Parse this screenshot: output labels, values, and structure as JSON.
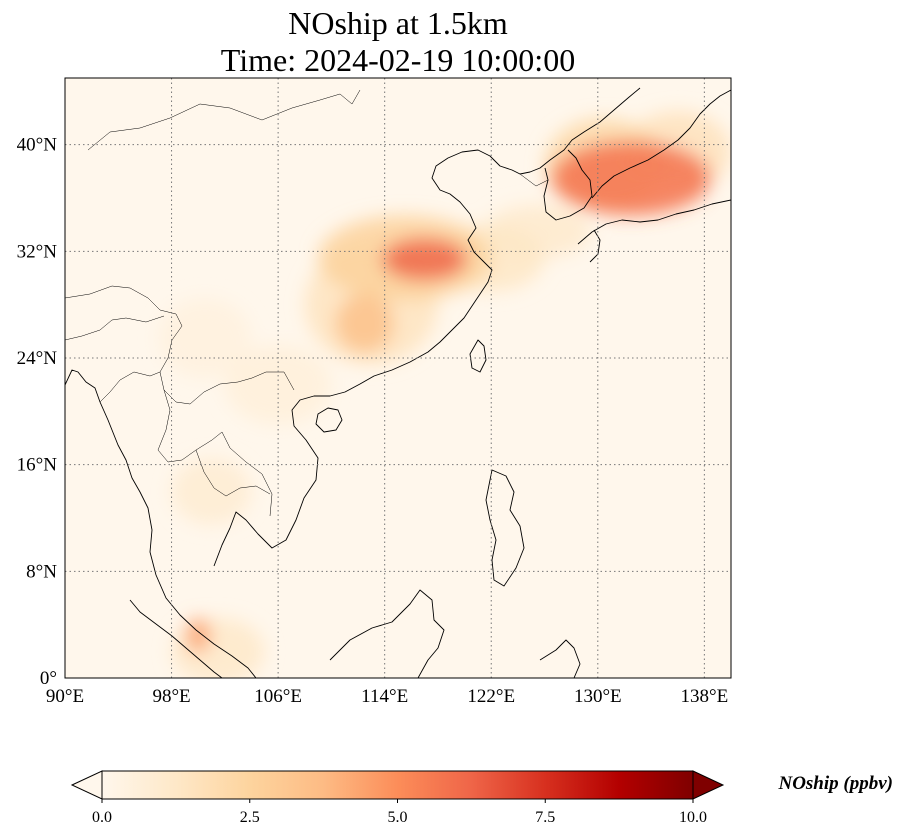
{
  "title": {
    "line1": "NOship at 1.5km",
    "line2": "Time: 2024-02-19 10:00:00"
  },
  "map": {
    "projection": "PlateCarree",
    "extent": {
      "lon": [
        90,
        140
      ],
      "lat": [
        0,
        45
      ]
    },
    "gridlines": {
      "style": "dotted",
      "color": "#777777"
    },
    "lon_ticks": [
      {
        "value": 90,
        "label": "90°E"
      },
      {
        "value": 98,
        "label": "98°E"
      },
      {
        "value": 106,
        "label": "106°E"
      },
      {
        "value": 114,
        "label": "114°E"
      },
      {
        "value": 122,
        "label": "122°E"
      },
      {
        "value": 130,
        "label": "130°E"
      },
      {
        "value": 138,
        "label": "138°E"
      }
    ],
    "lat_ticks": [
      {
        "value": 40,
        "label": "40°N"
      },
      {
        "value": 32,
        "label": "32°N"
      },
      {
        "value": 24,
        "label": "24°N"
      },
      {
        "value": 16,
        "label": "16°N"
      },
      {
        "value": 8,
        "label": "8°N"
      },
      {
        "value": 0,
        "label": "0°"
      }
    ],
    "plumes": [
      {
        "lon": 132.5,
        "lat": 37.5,
        "rx": 6.0,
        "ry": 2.8,
        "value": 5.8
      },
      {
        "lon": 130.5,
        "lat": 38.5,
        "rx": 4.5,
        "ry": 3.5,
        "value": 2.2
      },
      {
        "lon": 136.0,
        "lat": 39.5,
        "rx": 4.0,
        "ry": 3.0,
        "value": 1.6
      },
      {
        "lon": 117.0,
        "lat": 31.4,
        "rx": 3.2,
        "ry": 1.6,
        "value": 6.2
      },
      {
        "lon": 115.5,
        "lat": 31.5,
        "rx": 6.5,
        "ry": 3.2,
        "value": 2.6
      },
      {
        "lon": 112.5,
        "lat": 26.6,
        "rx": 2.2,
        "ry": 2.2,
        "value": 3.4
      },
      {
        "lon": 113.0,
        "lat": 28.0,
        "rx": 5.0,
        "ry": 4.5,
        "value": 1.5
      },
      {
        "lon": 122.0,
        "lat": 31.5,
        "rx": 4.0,
        "ry": 2.5,
        "value": 1.3
      },
      {
        "lon": 125.5,
        "lat": 33.5,
        "rx": 4.0,
        "ry": 2.0,
        "value": 1.1
      },
      {
        "lon": 100.0,
        "lat": 3.2,
        "rx": 0.9,
        "ry": 1.3,
        "value": 4.5
      },
      {
        "lon": 101.5,
        "lat": 2.0,
        "rx": 3.5,
        "ry": 2.5,
        "value": 1.2
      },
      {
        "lon": 101.0,
        "lat": 14.0,
        "rx": 3.0,
        "ry": 2.5,
        "value": 0.9
      },
      {
        "lon": 106.0,
        "lat": 22.0,
        "rx": 4.0,
        "ry": 3.0,
        "value": 0.6
      },
      {
        "lon": 100.5,
        "lat": 25.5,
        "rx": 3.5,
        "ry": 3.0,
        "value": 0.5
      }
    ]
  },
  "colorbar": {
    "cmap": "OrRd",
    "colors": [
      "#fff7ec",
      "#fee8c8",
      "#fdd49e",
      "#fdbb84",
      "#fc8d59",
      "#ef6548",
      "#d7301f",
      "#b30000",
      "#7f0000"
    ],
    "min": 0,
    "max": 10,
    "extend": "both",
    "ticks": [
      {
        "value": 0,
        "label": "0.0"
      },
      {
        "value": 2.5,
        "label": "2.5"
      },
      {
        "value": 5,
        "label": "5.0"
      },
      {
        "value": 7.5,
        "label": "7.5"
      },
      {
        "value": 10,
        "label": "10.0"
      }
    ],
    "label": "NOship (ppbv)"
  }
}
